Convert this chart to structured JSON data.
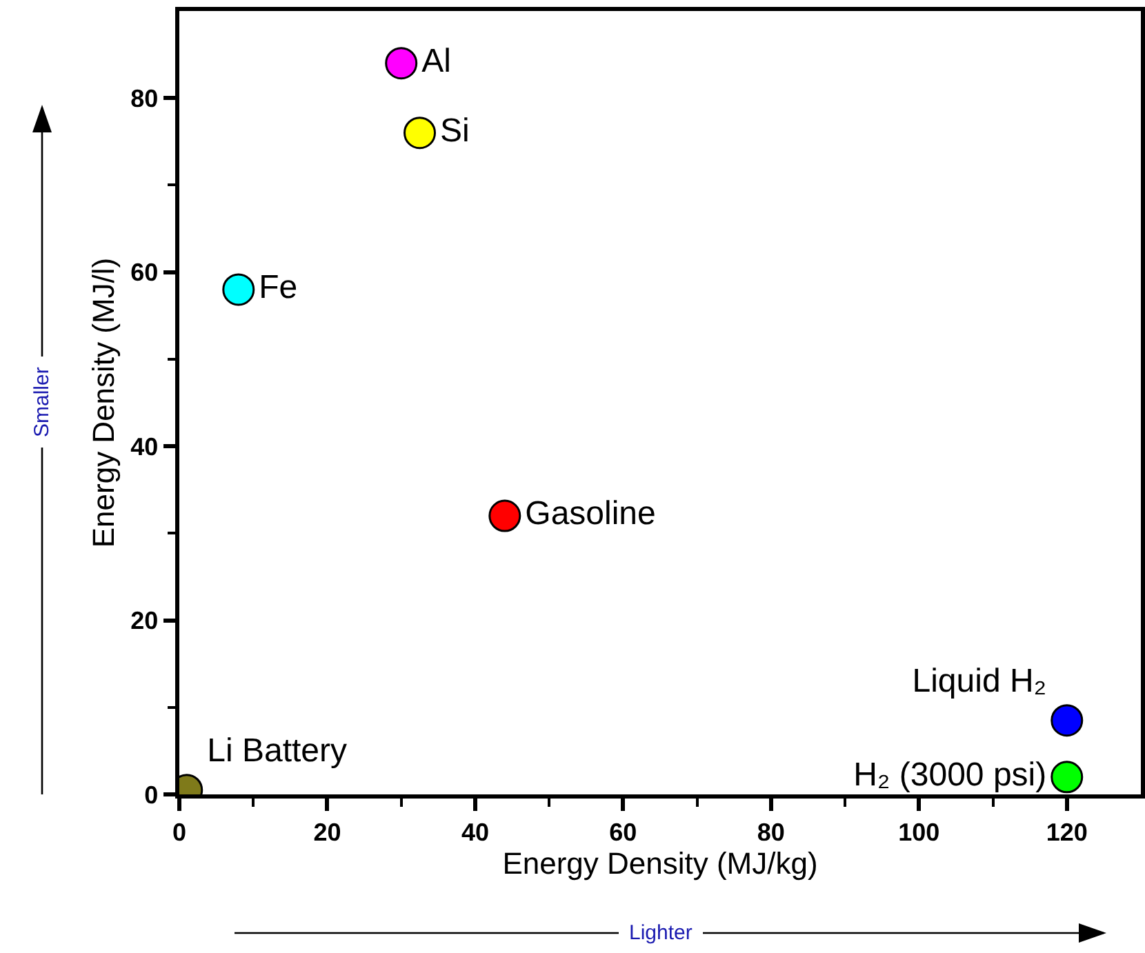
{
  "chart_data": {
    "type": "scatter",
    "xlabel": "Energy Density (MJ/kg)",
    "ylabel": "Energy Density (MJ/l)",
    "xlim": [
      0,
      130
    ],
    "ylim": [
      0,
      90
    ],
    "xticks": [
      0,
      {
        "value": 10,
        "label": null
      },
      20,
      {
        "value": 30,
        "label": null
      },
      40,
      {
        "value": 50,
        "label": null
      },
      60,
      {
        "value": 70,
        "label": null
      },
      80,
      {
        "value": 90,
        "label": null
      },
      100,
      {
        "value": 110,
        "label": null
      },
      120
    ],
    "yticks": [
      0,
      {
        "value": 10,
        "label": null
      },
      20,
      {
        "value": 30,
        "label": null
      },
      40,
      {
        "value": 50,
        "label": null
      },
      60,
      {
        "value": 70,
        "label": null
      },
      80
    ],
    "grid": false,
    "legend": false,
    "marker": "circle",
    "series": [
      {
        "name": "Al",
        "color": "#ff00ff",
        "x": [
          30
        ],
        "values": [
          84
        ]
      },
      {
        "name": "Si",
        "color": "#ffff00",
        "x": [
          32.5
        ],
        "values": [
          76
        ]
      },
      {
        "name": "Fe",
        "color": "#00ffff",
        "x": [
          8
        ],
        "values": [
          58
        ]
      },
      {
        "name": "Gasoline",
        "color": "#ff0000",
        "x": [
          44
        ],
        "values": [
          32
        ]
      },
      {
        "name": "Liquid H₂",
        "color": "#0000ff",
        "x": [
          120
        ],
        "values": [
          8.5
        ]
      },
      {
        "name": "H₂ (3000 psi)",
        "color": "#00ff00",
        "x": [
          120
        ],
        "values": [
          2
        ]
      },
      {
        "name": "Li Battery",
        "color": "#7f7a1a",
        "x": [
          1
        ],
        "values": [
          0.5
        ]
      }
    ],
    "annotations": [
      "Smaller",
      "Lighter"
    ]
  }
}
